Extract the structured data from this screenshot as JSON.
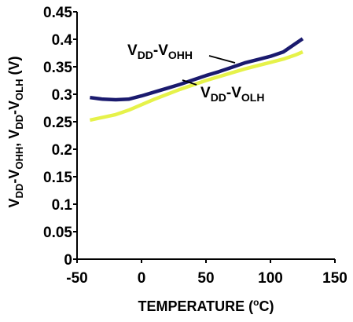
{
  "chart_data": {
    "type": "line",
    "title": "",
    "xlabel": {
      "before": "TEMPERATURE (",
      "sup": "o",
      "after": "C)"
    },
    "ylabel": {
      "parts": [
        {
          "text": "V",
          "sub": false
        },
        {
          "text": "DD",
          "sub": true
        },
        {
          "text": "-V",
          "sub": false
        },
        {
          "text": "OHH",
          "sub": true
        },
        {
          "text": ", V",
          "sub": false
        },
        {
          "text": "DD",
          "sub": true
        },
        {
          "text": "-V",
          "sub": false
        },
        {
          "text": "OLH",
          "sub": true
        },
        {
          "text": " (V)",
          "sub": false
        }
      ]
    },
    "xlim": [
      -50,
      150
    ],
    "ylim": [
      0,
      0.45
    ],
    "grid": false,
    "x_ticks": [
      "-50",
      "0",
      "50",
      "100",
      "150"
    ],
    "x_tick_values": [
      -50,
      0,
      50,
      100,
      150
    ],
    "y_ticks": [
      "0",
      "0.05",
      "0.1",
      "0.15",
      "0.2",
      "0.25",
      "0.3",
      "0.35",
      "0.4",
      "0.45"
    ],
    "y_tick_values": [
      0,
      0.05,
      0.1,
      0.15,
      0.2,
      0.25,
      0.3,
      0.35,
      0.4,
      0.45
    ],
    "series": [
      {
        "key": "vohh",
        "color": "#1a1a6e",
        "x": [
          -40,
          -30,
          -20,
          -10,
          0,
          10,
          20,
          30,
          40,
          50,
          60,
          70,
          80,
          90,
          100,
          110,
          120,
          125
        ],
        "y": [
          0.294,
          0.291,
          0.29,
          0.291,
          0.297,
          0.304,
          0.311,
          0.318,
          0.326,
          0.334,
          0.341,
          0.349,
          0.357,
          0.363,
          0.369,
          0.377,
          0.393,
          0.401
        ],
        "label": [
          {
            "text": "V",
            "sub": false
          },
          {
            "text": "DD",
            "sub": true
          },
          {
            "text": "-V",
            "sub": false
          },
          {
            "text": "OHH",
            "sub": true
          }
        ]
      },
      {
        "key": "volh",
        "color": "#e6f24a",
        "x": [
          -40,
          -30,
          -20,
          -10,
          0,
          10,
          20,
          30,
          40,
          50,
          60,
          70,
          80,
          90,
          100,
          110,
          120,
          125
        ],
        "y": [
          0.253,
          0.258,
          0.263,
          0.271,
          0.281,
          0.291,
          0.3,
          0.309,
          0.317,
          0.325,
          0.332,
          0.339,
          0.346,
          0.352,
          0.358,
          0.364,
          0.372,
          0.377
        ],
        "label": [
          {
            "text": "V",
            "sub": false
          },
          {
            "text": "DD",
            "sub": true
          },
          {
            "text": "-V",
            "sub": false
          },
          {
            "text": "OLH",
            "sub": true
          }
        ]
      }
    ]
  }
}
